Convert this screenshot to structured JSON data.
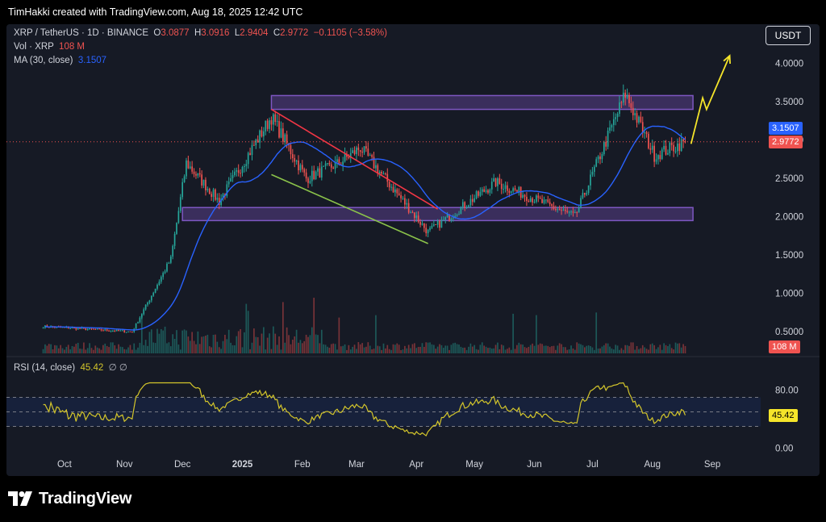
{
  "header": {
    "attribution": "TimHakki created with TradingView.com, Aug 18, 2025 12:42 UTC"
  },
  "legend": {
    "symbol": "XRP / TetherUS · 1D · BINANCE",
    "o_label": "O",
    "o_value": "3.0877",
    "h_label": "H",
    "h_value": "3.0916",
    "l_label": "L",
    "l_value": "2.9404",
    "c_label": "C",
    "c_value": "2.9772",
    "change": "−0.1105 (−3.58%)",
    "vol_label": "Vol · XRP",
    "vol_value": "108 M",
    "ma_label": "MA (30, close)",
    "ma_value": "3.1507",
    "rsi_label": "RSI (14, close)",
    "rsi_value": "45.42",
    "rsi_extra": "∅ ∅"
  },
  "currency_badge": "USDT",
  "price_tags": {
    "ma": "3.1507",
    "last": "2.9772",
    "volume": "108 M",
    "rsi": "45.42"
  },
  "footer": {
    "brand": "TradingView"
  },
  "colors": {
    "up": "#26a69a",
    "down": "#ef5350",
    "ma": "#2962ff",
    "zone": "#7e57c2",
    "resistance_trend": "#f23645",
    "support_trend": "#8bc34a",
    "projection": "#f5e52a",
    "rsi": "#d4c62b"
  },
  "chart_data": {
    "type": "candlestick",
    "price_axis": {
      "ticks": [
        "4.0000",
        "3.5000",
        "3.0000",
        "2.5000",
        "2.0000",
        "1.5000",
        "1.0000",
        "0.5000"
      ],
      "range": [
        0.25,
        4.3
      ]
    },
    "time_axis": {
      "ticks": [
        "Oct",
        "Nov",
        "Dec",
        "2025",
        "Feb",
        "Mar",
        "Apr",
        "May",
        "Jun",
        "Jul",
        "Aug",
        "Sep"
      ]
    },
    "rsi_axis": {
      "ticks": [
        "80.00",
        "0.00"
      ],
      "range": [
        -5,
        95
      ],
      "bands": [
        30,
        70
      ]
    },
    "key_points": [
      {
        "date": "2024-09-20",
        "close": 0.57
      },
      {
        "date": "2024-11-05",
        "close": 0.5
      },
      {
        "date": "2024-11-25",
        "close": 1.45
      },
      {
        "date": "2024-12-03",
        "close": 2.7
      },
      {
        "date": "2024-12-20",
        "close": 2.2
      },
      {
        "date": "2025-01-16",
        "close": 3.3
      },
      {
        "date": "2025-02-03",
        "close": 2.5
      },
      {
        "date": "2025-02-20",
        "close": 2.7
      },
      {
        "date": "2025-03-03",
        "close": 2.9
      },
      {
        "date": "2025-04-07",
        "close": 1.8
      },
      {
        "date": "2025-05-12",
        "close": 2.45
      },
      {
        "date": "2025-06-22",
        "close": 2.0
      },
      {
        "date": "2025-07-18",
        "close": 3.6
      },
      {
        "date": "2025-08-02",
        "close": 2.8
      },
      {
        "date": "2025-08-18",
        "close": 2.9772
      }
    ],
    "ma30_last": 3.1507,
    "volume_last": "108 M",
    "rsi_last": 45.42,
    "zones": [
      {
        "from": 3.4,
        "to": 3.58
      },
      {
        "from": 1.95,
        "to": 2.12
      }
    ],
    "trendlines": [
      {
        "name": "resistance",
        "from": {
          "date": "2025-01-16",
          "price": 3.4
        },
        "to": {
          "date": "2025-04-12",
          "price": 2.1
        }
      },
      {
        "name": "support",
        "from": {
          "date": "2025-01-16",
          "price": 2.55
        },
        "to": {
          "date": "2025-04-07",
          "price": 1.65
        }
      }
    ],
    "projection": [
      {
        "date": "2025-08-21",
        "price": 2.95
      },
      {
        "date": "2025-08-27",
        "price": 3.55
      },
      {
        "date": "2025-08-29",
        "price": 3.4
      },
      {
        "date": "2025-09-10",
        "price": 4.1
      }
    ]
  }
}
